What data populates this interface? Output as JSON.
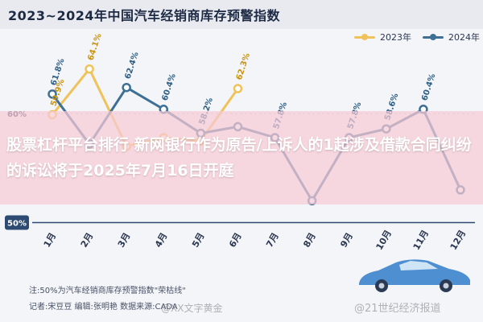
{
  "header": {
    "title": "2023~2024年中国汽车经销商库存预警指数"
  },
  "legend": [
    {
      "label": "2023年",
      "color": "#f0c25a"
    },
    {
      "label": "2024年",
      "color": "#3e6f94"
    }
  ],
  "chart_data": {
    "type": "line",
    "categories": [
      "1月",
      "2月",
      "3月",
      "4月",
      "5月",
      "6月",
      "7月",
      "8月",
      "9月",
      "10月",
      "11月",
      "12月"
    ],
    "yticks": [
      "60%",
      "50%"
    ],
    "ylim": [
      49,
      66
    ],
    "reference_line": {
      "value": 50
    },
    "series": [
      {
        "name": "2023年",
        "color": "#f0c25a",
        "values": [
          59.9,
          64.1,
          57.0,
          57.8,
          57.5,
          62.3,
          null,
          null,
          null,
          null,
          null,
          null
        ]
      },
      {
        "name": "2024年",
        "color": "#3e6f94",
        "values": [
          61.8,
          57.2,
          62.4,
          60.4,
          58.2,
          58.8,
          57.8,
          52.0,
          57.8,
          58.6,
          60.4,
          53.0
        ]
      }
    ],
    "data_labels": [
      {
        "series": 1,
        "index": 0,
        "text": "61.8%"
      },
      {
        "series": 0,
        "index": 0,
        "text": "59.9%"
      },
      {
        "series": 0,
        "index": 1,
        "text": "64.1%"
      },
      {
        "series": 1,
        "index": 2,
        "text": "62.4%"
      },
      {
        "series": 1,
        "index": 3,
        "text": "60.4%"
      },
      {
        "series": 1,
        "index": 4,
        "text": "58.2%"
      },
      {
        "series": 0,
        "index": 5,
        "text": "62.3%"
      },
      {
        "series": 1,
        "index": 6,
        "text": "57.8%"
      },
      {
        "series": 1,
        "index": 8,
        "text": "57.8%"
      },
      {
        "series": 1,
        "index": 9,
        "text": "58.6%"
      },
      {
        "series": 1,
        "index": 10,
        "text": "60.4%"
      }
    ]
  },
  "overlay": {
    "headline": "股票杠杆平台排行 新网银行作为原告/上诉人的1起涉及借款合同纠纷的诉讼将于2025年7月16日开庭"
  },
  "footnotes": {
    "note": "注:50%为汽车经销商库存预警指数\"荣枯线\"",
    "credits": "记者:宋豆豆   编辑:张明艳   数据来源:CADA"
  },
  "watermarks": [
    "@XX文字黄金",
    "@21世纪经济报道"
  ]
}
